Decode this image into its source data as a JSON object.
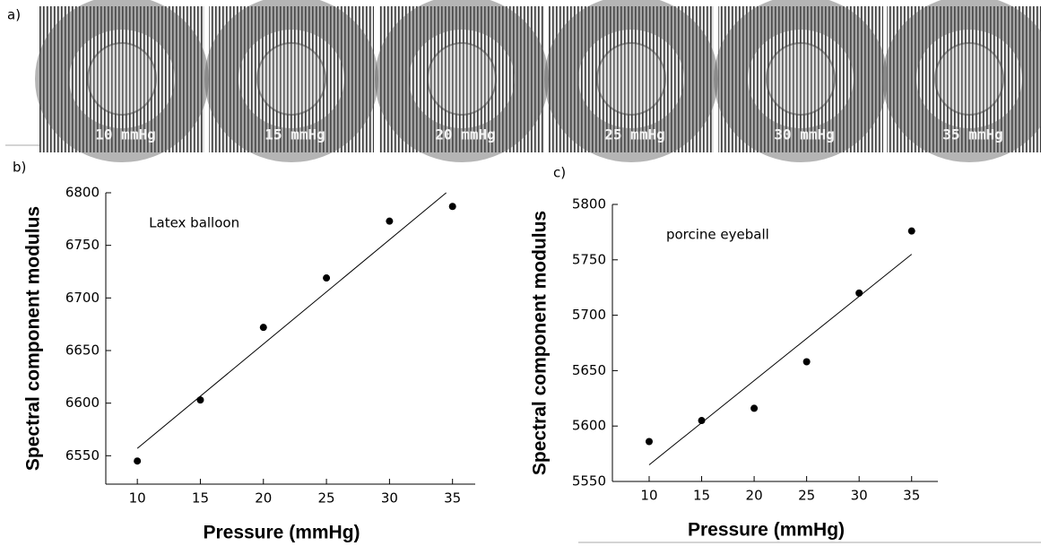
{
  "figure_a": {
    "label": "a)",
    "images": [
      "10 mmHg",
      "15 mmHg",
      "20 mmHg",
      "25 mmHg",
      "30 mmHg",
      "35 mmHg"
    ]
  },
  "chart_data": [
    {
      "type": "scatter",
      "panel": "b)",
      "annotation": "Latex balloon",
      "x_label": "Pressure (mmHg)",
      "y_label": "Spectral component modulus",
      "x": [
        10,
        15,
        20,
        25,
        30,
        35
      ],
      "series": [
        {
          "color": "#000000",
          "values": [
            6545,
            6603,
            6672,
            6719,
            6773,
            6787
          ]
        }
      ],
      "fit": {
        "x": [
          10,
          34.5
        ],
        "values": [
          6557,
          6800
        ]
      },
      "xlim": [
        7.5,
        36.8
      ],
      "ylim": [
        6523,
        6800
      ],
      "xticks": [
        10,
        15,
        20,
        25,
        30,
        35
      ],
      "yticks": [
        6550,
        6600,
        6650,
        6700,
        6750,
        6800
      ]
    },
    {
      "type": "scatter",
      "panel": "c)",
      "annotation": "porcine eyeball",
      "x_label": "Pressure (mmHg)",
      "y_label": "Spectral component modulus",
      "x": [
        10,
        15,
        20,
        25,
        30,
        35
      ],
      "series": [
        {
          "color": "#000000",
          "values": [
            5586,
            5605,
            5616,
            5658,
            5720,
            5776
          ]
        }
      ],
      "fit": {
        "x": [
          10,
          35
        ],
        "values": [
          5565,
          5755
        ]
      },
      "xlim": [
        6.5,
        37.5
      ],
      "ylim": [
        5550,
        5800
      ],
      "xticks": [
        10,
        15,
        20,
        25,
        30,
        35
      ],
      "yticks": [
        5550,
        5600,
        5650,
        5700,
        5750,
        5800
      ]
    }
  ]
}
